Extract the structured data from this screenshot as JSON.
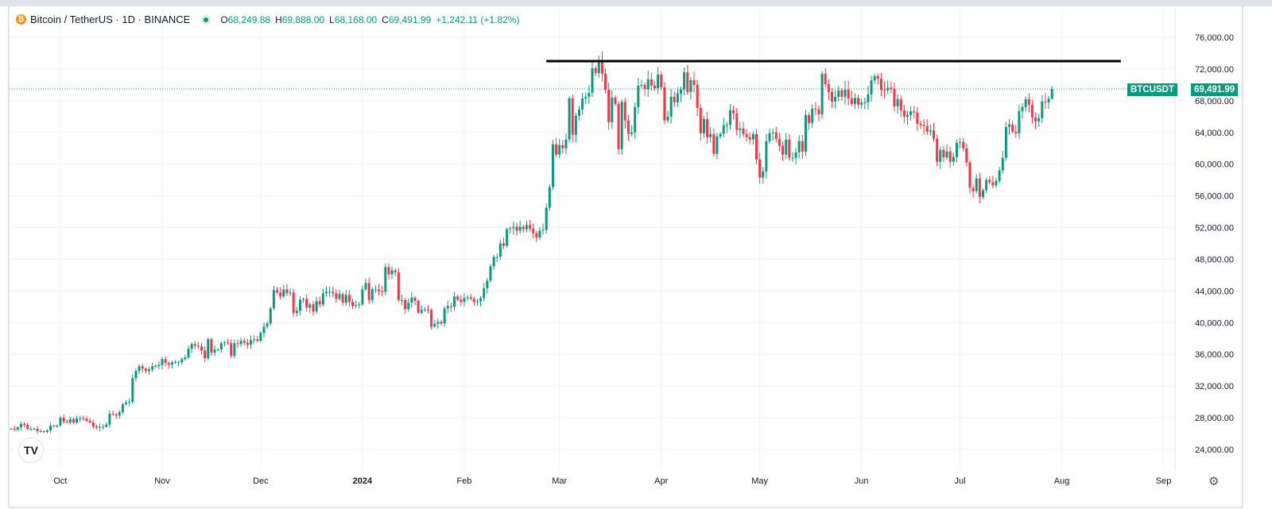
{
  "header": {
    "symbol_title": "Bitcoin / TetherUS · 1D · BINANCE",
    "open_label": "O",
    "open": "68,249.88",
    "high_label": "H",
    "high": "69,888.00",
    "low_label": "L",
    "low": "68,168.00",
    "close_label": "C",
    "close": "69,491.99",
    "change": "+1,242.11 (+1.82%)"
  },
  "price_tag": {
    "symbol": "BTCUSDT",
    "price": "69,491.99"
  },
  "logo_text": "TV",
  "colors": {
    "up": "#089981",
    "down": "#f23645",
    "grid": "#f0f3fa",
    "line": "#000000"
  },
  "chart_data": {
    "type": "candlestick",
    "title": "Bitcoin / TetherUS · 1D · BINANCE",
    "start_date": "2023-09-16",
    "interval": "1D",
    "first_open": 26600,
    "closes": [
      26600,
      26500,
      26800,
      27200,
      27100,
      26600,
      26600,
      26600,
      26300,
      26300,
      26200,
      26400,
      27000,
      26900,
      27000,
      28000,
      27500,
      27400,
      27800,
      27400,
      27900,
      27950,
      27900,
      27600,
      27400,
      26900,
      26750,
      26850,
      26850,
      27150,
      28500,
      28400,
      28300,
      28700,
      29700,
      29900,
      30000,
      33000,
      33900,
      34500,
      34200,
      33900,
      34100,
      34500,
      34500,
      34650,
      35400,
      34900,
      34700,
      35000,
      35000,
      35000,
      35400,
      35600,
      36700,
      37300,
      37100,
      37000,
      36500,
      35500,
      37900,
      36200,
      36600,
      36600,
      37400,
      37500,
      37400,
      35800,
      37400,
      37300,
      37700,
      37450,
      37200,
      37800,
      37900,
      37700,
      38700,
      39500,
      39900,
      41800,
      44100,
      43800,
      43300,
      44200,
      43700,
      43800,
      41200,
      41500,
      42900,
      43000,
      41900,
      42300,
      41400,
      42700,
      42300,
      43700,
      43900,
      43900,
      43700,
      43000,
      43600,
      42500,
      43500,
      42600,
      42100,
      42200,
      42300,
      44200,
      45000,
      42850,
      44200,
      44200,
      43950,
      43900,
      47000,
      46100,
      46600,
      46350,
      42850,
      42850,
      41700,
      42500,
      43150,
      42750,
      41250,
      41600,
      41650,
      41600,
      39500,
      39850,
      40100,
      39900,
      41800,
      42100,
      42000,
      43300,
      42900,
      42600,
      43100,
      43200,
      43000,
      42600,
      42700,
      43100,
      44350,
      45300,
      47100,
      48300,
      48300,
      50000,
      49700,
      51800,
      51900,
      52100,
      51600,
      52100,
      51800,
      52300,
      51850,
      51300,
      50750,
      51600,
      51700,
      54500,
      57100,
      62500,
      61200,
      62400,
      62000,
      63100,
      68300,
      63700,
      66100,
      66900,
      68300,
      68500,
      69000,
      72100,
      71500,
      73100,
      71400,
      69400,
      65300,
      68400,
      67600,
      61900,
      67850,
      65500,
      63800,
      64000,
      67200,
      69900,
      69990,
      69450,
      70700,
      69900,
      69600,
      71300,
      69700,
      65500,
      66000,
      68500,
      67800,
      68900,
      69400,
      71600,
      69100,
      70600,
      70000,
      67100,
      63900,
      65700,
      63400,
      63800,
      61300,
      63500,
      63800,
      64900,
      64950,
      66800,
      66400,
      64300,
      64500,
      63800,
      63400,
      63100,
      63800,
      60600,
      58300,
      59100,
      62900,
      63900,
      64000,
      63200,
      62300,
      61200,
      63100,
      60800,
      60800,
      61500,
      62900,
      61600,
      66200,
      65200,
      67000,
      66900,
      66300,
      71400,
      70100,
      69100,
      67900,
      68500,
      69300,
      68500,
      69400,
      68300,
      67600,
      68350,
      67500,
      67750,
      67800,
      68800,
      70550,
      71100,
      70800,
      69350,
      69300,
      69650,
      69500,
      67300,
      68200,
      66800,
      66000,
      66200,
      66650,
      66500,
      65100,
      64950,
      64800,
      64100,
      64250,
      63200,
      60300,
      61800,
      60850,
      61600,
      60300,
      60900,
      62700,
      62800,
      62000,
      60200,
      57000,
      56600,
      58200,
      55850,
      56700,
      58000,
      57700,
      57300,
      57900,
      59200,
      60800,
      64700,
      65000,
      64100,
      63900,
      66700,
      67200,
      68200,
      67500,
      65900,
      65400,
      65800,
      67900,
      67800,
      68250,
      69491.99
    ],
    "last_candle": {
      "open": 68249.88,
      "high": 69888.0,
      "low": 68168.0,
      "close": 69491.99
    },
    "y_ticks": [
      "76,000.00",
      "72,000.00",
      "68,000.00",
      "64,000.00",
      "60,000.00",
      "56,000.00",
      "52,000.00",
      "48,000.00",
      "44,000.00",
      "40,000.00",
      "36,000.00",
      "32,000.00",
      "28,000.00",
      "24,000.00"
    ],
    "y_tick_values": [
      76000,
      72000,
      68000,
      64000,
      60000,
      56000,
      52000,
      48000,
      44000,
      40000,
      36000,
      32000,
      28000,
      24000
    ],
    "ylim": [
      24000,
      76000
    ],
    "x_ticks": [
      {
        "label": "Oct",
        "date": "2023-10-01"
      },
      {
        "label": "Nov",
        "date": "2023-11-01"
      },
      {
        "label": "Dec",
        "date": "2023-12-01"
      },
      {
        "label": "2024",
        "date": "2024-01-01"
      },
      {
        "label": "Feb",
        "date": "2024-02-01"
      },
      {
        "label": "Mar",
        "date": "2024-03-01"
      },
      {
        "label": "Apr",
        "date": "2024-04-01"
      },
      {
        "label": "May",
        "date": "2024-05-01"
      },
      {
        "label": "Jun",
        "date": "2024-06-01"
      },
      {
        "label": "Jul",
        "date": "2024-07-01"
      },
      {
        "label": "Aug",
        "date": "2024-08-01"
      },
      {
        "label": "Sep",
        "date": "2024-09-01"
      }
    ],
    "xlim": [
      "2023-09-16",
      "2024-09-11"
    ],
    "annotations": [
      {
        "type": "horizontal-line",
        "price": 73000,
        "from": "2024-02-26",
        "to": "2024-08-19"
      }
    ],
    "current_price": 69491.99,
    "grid": true
  }
}
